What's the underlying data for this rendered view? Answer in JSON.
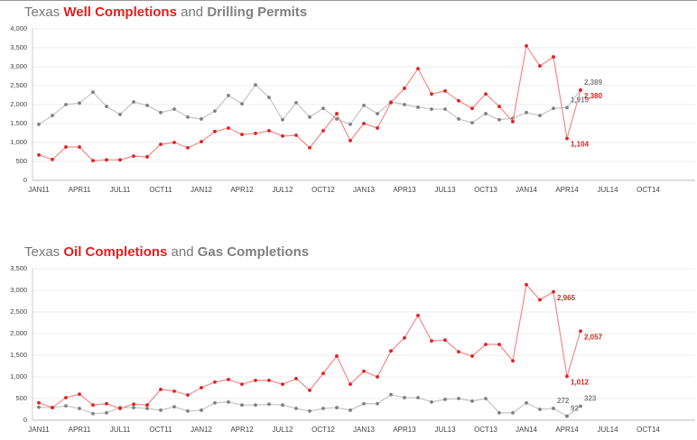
{
  "chart_data": [
    {
      "type": "line",
      "title": {
        "prefix": "Texas",
        "joiner": "and"
      },
      "categories": [
        "JAN11",
        null,
        null,
        "APR11",
        null,
        null,
        "JUL11",
        null,
        null,
        "OCT11",
        null,
        null,
        "JAN12",
        null,
        null,
        "APR12",
        null,
        null,
        "JUL12",
        null,
        null,
        "OCT12",
        null,
        null,
        "JAN13",
        null,
        null,
        "APR13",
        null,
        null,
        "JUL13",
        null,
        null,
        "OCT13",
        null,
        null,
        "JAN14",
        null,
        null,
        "APR14",
        null,
        null,
        "JUL14",
        null,
        null,
        "OCT14",
        null,
        null
      ],
      "series": [
        {
          "name": "Well Completions",
          "color": "#e02020",
          "line_color": "#f28a8a",
          "values": [
            670,
            550,
            880,
            880,
            520,
            540,
            540,
            640,
            620,
            950,
            1000,
            860,
            1020,
            1290,
            1380,
            1210,
            1240,
            1310,
            1170,
            1190,
            860,
            1310,
            1760,
            1050,
            1500,
            1380,
            2050,
            2430,
            2950,
            2280,
            2360,
            2100,
            1900,
            2280,
            1950,
            1550,
            3550,
            3020,
            3260,
            1104,
            2380,
            null,
            null,
            null,
            null,
            null,
            null,
            null
          ],
          "value_labels": [
            null,
            null,
            null,
            null,
            null,
            null,
            null,
            null,
            null,
            null,
            null,
            null,
            null,
            null,
            null,
            null,
            null,
            null,
            null,
            null,
            null,
            null,
            null,
            null,
            null,
            null,
            null,
            null,
            null,
            null,
            null,
            null,
            null,
            null,
            null,
            null,
            null,
            null,
            null,
            "1,104",
            "2,380",
            null,
            null,
            null,
            null,
            null,
            null,
            null
          ]
        },
        {
          "name": "Drilling Permits",
          "color": "#808080",
          "line_color": "#c4c4c4",
          "values": [
            1480,
            1710,
            2000,
            2040,
            2330,
            1950,
            1740,
            2070,
            1980,
            1790,
            1880,
            1670,
            1620,
            1830,
            2240,
            2020,
            2520,
            2190,
            1600,
            2050,
            1670,
            1900,
            1620,
            1480,
            1980,
            1760,
            2070,
            2000,
            1930,
            1880,
            1880,
            1620,
            1520,
            1760,
            1600,
            1640,
            1790,
            1710,
            1900,
            1919,
            2389,
            null,
            null,
            null,
            null,
            null,
            null,
            null
          ],
          "value_labels": [
            null,
            null,
            null,
            null,
            null,
            null,
            null,
            null,
            null,
            null,
            null,
            null,
            null,
            null,
            null,
            null,
            null,
            null,
            null,
            null,
            null,
            null,
            null,
            null,
            null,
            null,
            null,
            null,
            null,
            null,
            null,
            null,
            null,
            null,
            null,
            null,
            null,
            null,
            null,
            "1,919",
            "2,389",
            null,
            null,
            null,
            null,
            null,
            null,
            null
          ]
        }
      ],
      "ylim": [
        0,
        4000
      ],
      "yticks": [
        0,
        500,
        {
          "value": 1000,
          "label": "1,000"
        },
        {
          "value": 1500,
          "label": "1,500"
        },
        {
          "value": 2000,
          "label": "2,000"
        },
        {
          "value": 2500,
          "label": "2,500"
        },
        {
          "value": 3000,
          "label": "3,000"
        },
        {
          "value": 3500,
          "label": "3,500"
        },
        {
          "value": 4000,
          "label": "4,000"
        }
      ],
      "grid": true
    },
    {
      "type": "line",
      "title": {
        "prefix": "Texas",
        "joiner": "and"
      },
      "categories": [
        "JAN11",
        null,
        null,
        "APR11",
        null,
        null,
        "JUL11",
        null,
        null,
        "OCT11",
        null,
        null,
        "JAN12",
        null,
        null,
        "APR12",
        null,
        null,
        "JUL12",
        null,
        null,
        "OCT12",
        null,
        null,
        "JAN13",
        null,
        null,
        "APR13",
        null,
        null,
        "JUL13",
        null,
        null,
        "OCT13",
        null,
        null,
        "JAN14",
        null,
        null,
        "APR14",
        null,
        null,
        "JUL14",
        null,
        null,
        "OCT14",
        null,
        null
      ],
      "series": [
        {
          "name": "Oil Completions",
          "color": "#e02020",
          "line_color": "#f28a8a",
          "values": [
            400,
            290,
            520,
            600,
            350,
            380,
            270,
            370,
            350,
            710,
            670,
            580,
            750,
            880,
            940,
            830,
            920,
            920,
            830,
            960,
            690,
            1080,
            1480,
            830,
            1130,
            1000,
            1600,
            1900,
            2420,
            1830,
            1850,
            1580,
            1480,
            1750,
            1750,
            1370,
            3130,
            2780,
            2965,
            1012,
            2057,
            null,
            null,
            null,
            null,
            null,
            null,
            null
          ],
          "value_labels": [
            null,
            null,
            null,
            null,
            null,
            null,
            null,
            null,
            null,
            null,
            null,
            null,
            null,
            null,
            null,
            null,
            null,
            null,
            null,
            null,
            null,
            null,
            null,
            null,
            null,
            null,
            null,
            null,
            null,
            null,
            null,
            null,
            null,
            null,
            null,
            null,
            null,
            null,
            "2,965",
            "1,012",
            "2,057",
            null,
            null,
            null,
            null,
            null,
            null,
            null
          ]
        },
        {
          "name": "Gas Completions",
          "color": "#808080",
          "line_color": "#c4c4c4",
          "values": [
            300,
            290,
            330,
            270,
            150,
            170,
            290,
            290,
            270,
            230,
            310,
            210,
            230,
            400,
            420,
            350,
            350,
            370,
            350,
            270,
            210,
            270,
            290,
            230,
            380,
            380,
            590,
            520,
            520,
            420,
            480,
            500,
            440,
            500,
            170,
            170,
            400,
            250,
            272,
            92,
            323,
            null,
            null,
            null,
            null,
            null,
            null,
            null
          ],
          "value_labels": [
            null,
            null,
            null,
            null,
            null,
            null,
            null,
            null,
            null,
            null,
            null,
            null,
            null,
            null,
            null,
            null,
            null,
            null,
            null,
            null,
            null,
            null,
            null,
            null,
            null,
            null,
            null,
            null,
            null,
            null,
            null,
            null,
            null,
            null,
            null,
            null,
            null,
            null,
            "272",
            "92",
            "323",
            null,
            null,
            null,
            null,
            null,
            null,
            null
          ]
        }
      ],
      "ylim": [
        0,
        3500
      ],
      "yticks": [
        0,
        500,
        {
          "value": 1000,
          "label": "1,000"
        },
        {
          "value": 1500,
          "label": "1,500"
        },
        {
          "value": 2000,
          "label": "2,000"
        },
        {
          "value": 2500,
          "label": "2,500"
        },
        {
          "value": 3000,
          "label": "3,000"
        },
        {
          "value": 3500,
          "label": "3,500"
        }
      ],
      "grid": true
    }
  ]
}
